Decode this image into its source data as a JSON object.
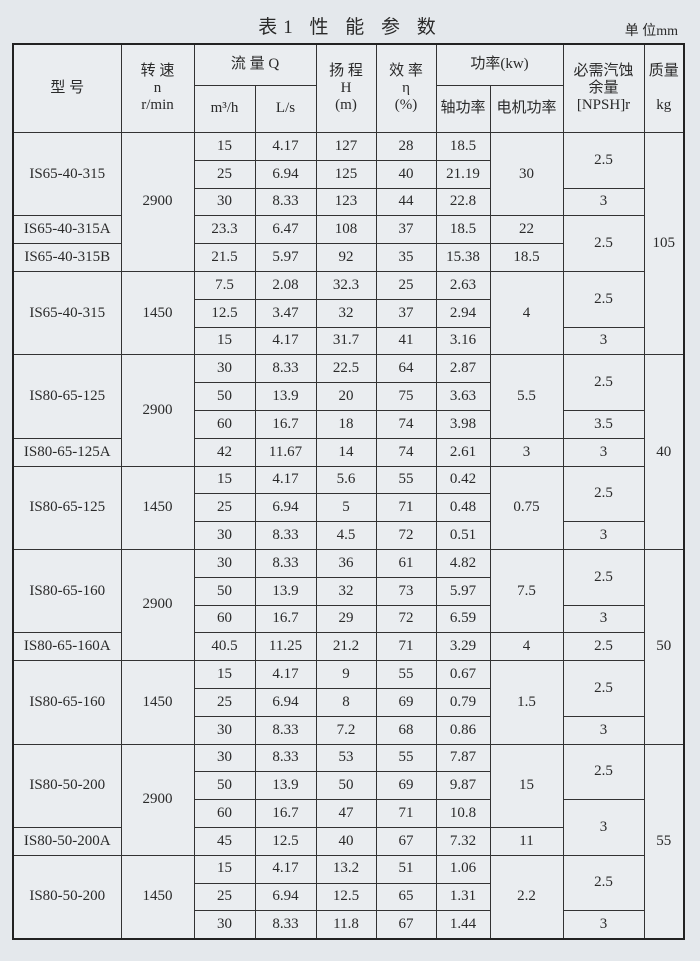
{
  "title": "表1  性 能 参 数",
  "unit": "单 位mm",
  "headers": {
    "model": "型    号",
    "speed": [
      "转 速",
      "n",
      "r/min"
    ],
    "flow": "流 量  Q",
    "flow_m3h": "m³/h",
    "flow_ls": "L/s",
    "head": [
      "扬 程",
      "H",
      "(m)"
    ],
    "efficiency": [
      "效 率",
      "η",
      "(%)"
    ],
    "power": "功率(kw)",
    "shaft_power": "轴功率",
    "motor_power": "电机功率",
    "npsh": [
      "必需汽蚀",
      "余量",
      "[NPSH]r"
    ],
    "mass": [
      "质量",
      "kg"
    ]
  },
  "groups": [
    {
      "model": "IS65-40-315",
      "speed": "2900",
      "speed_rows": 5,
      "rows": [
        [
          "15",
          "4.17",
          "127",
          "28",
          "18.5"
        ],
        [
          "25",
          "6.94",
          "125",
          "40",
          "21.19"
        ],
        [
          "30",
          "8.33",
          "123",
          "44",
          "22.8"
        ]
      ]
    },
    {
      "model": "IS65-40-315A",
      "rows": [
        [
          "23.3",
          "6.47",
          "108",
          "37",
          "18.5"
        ]
      ]
    },
    {
      "model": "IS65-40-315B",
      "rows": [
        [
          "21.5",
          "5.97",
          "92",
          "35",
          "15.38"
        ]
      ]
    },
    {
      "model": "IS65-40-315",
      "speed": "1450",
      "speed_rows": 3,
      "rows": [
        [
          "7.5",
          "2.08",
          "32.3",
          "25",
          "2.63"
        ],
        [
          "12.5",
          "3.47",
          "32",
          "37",
          "2.94"
        ],
        [
          "15",
          "4.17",
          "31.7",
          "41",
          "3.16"
        ]
      ]
    },
    {
      "model": "IS80-65-125",
      "speed": "2900",
      "speed_rows": 4,
      "rows": [
        [
          "30",
          "8.33",
          "22.5",
          "64",
          "2.87"
        ],
        [
          "50",
          "13.9",
          "20",
          "75",
          "3.63"
        ],
        [
          "60",
          "16.7",
          "18",
          "74",
          "3.98"
        ]
      ]
    },
    {
      "model": "IS80-65-125A",
      "rows": [
        [
          "42",
          "11.67",
          "14",
          "74",
          "2.61"
        ]
      ]
    },
    {
      "model": "IS80-65-125",
      "speed": "1450",
      "speed_rows": 3,
      "rows": [
        [
          "15",
          "4.17",
          "5.6",
          "55",
          "0.42"
        ],
        [
          "25",
          "6.94",
          "5",
          "71",
          "0.48"
        ],
        [
          "30",
          "8.33",
          "4.5",
          "72",
          "0.51"
        ]
      ]
    },
    {
      "model": "IS80-65-160",
      "speed": "2900",
      "speed_rows": 4,
      "rows": [
        [
          "30",
          "8.33",
          "36",
          "61",
          "4.82"
        ],
        [
          "50",
          "13.9",
          "32",
          "73",
          "5.97"
        ],
        [
          "60",
          "16.7",
          "29",
          "72",
          "6.59"
        ]
      ]
    },
    {
      "model": "IS80-65-160A",
      "rows": [
        [
          "40.5",
          "11.25",
          "21.2",
          "71",
          "3.29"
        ]
      ]
    },
    {
      "model": "IS80-65-160",
      "speed": "1450",
      "speed_rows": 3,
      "rows": [
        [
          "15",
          "4.17",
          "9",
          "55",
          "0.67"
        ],
        [
          "25",
          "6.94",
          "8",
          "69",
          "0.79"
        ],
        [
          "30",
          "8.33",
          "7.2",
          "68",
          "0.86"
        ]
      ]
    },
    {
      "model": "IS80-50-200",
      "speed": "2900",
      "speed_rows": 4,
      "rows": [
        [
          "30",
          "8.33",
          "53",
          "55",
          "7.87"
        ],
        [
          "50",
          "13.9",
          "50",
          "69",
          "9.87"
        ],
        [
          "60",
          "16.7",
          "47",
          "71",
          "10.8"
        ]
      ]
    },
    {
      "model": "IS80-50-200A",
      "rows": [
        [
          "45",
          "12.5",
          "40",
          "67",
          "7.32"
        ]
      ]
    },
    {
      "model": "IS80-50-200",
      "speed": "1450",
      "speed_rows": 3,
      "rows": [
        [
          "15",
          "4.17",
          "13.2",
          "51",
          "1.06"
        ],
        [
          "25",
          "6.94",
          "12.5",
          "65",
          "1.31"
        ],
        [
          "30",
          "8.33",
          "11.8",
          "67",
          "1.44"
        ]
      ]
    }
  ],
  "motor_power": [
    {
      "value": "30",
      "rows": 3
    },
    {
      "value": "22",
      "rows": 1
    },
    {
      "value": "18.5",
      "rows": 1
    },
    {
      "value": "4",
      "rows": 3
    },
    {
      "value": "5.5",
      "rows": 3
    },
    {
      "value": "3",
      "rows": 1
    },
    {
      "value": "0.75",
      "rows": 3
    },
    {
      "value": "7.5",
      "rows": 3
    },
    {
      "value": "4",
      "rows": 1
    },
    {
      "value": "1.5",
      "rows": 3
    },
    {
      "value": "15",
      "rows": 3
    },
    {
      "value": "11",
      "rows": 1
    },
    {
      "value": "2.2",
      "rows": 3
    }
  ],
  "npsh": [
    {
      "value": "2.5",
      "rows": 2
    },
    {
      "value": "3",
      "rows": 1
    },
    {
      "value": "2.5",
      "rows": 2
    },
    {
      "value": "2.5",
      "rows": 2
    },
    {
      "value": "3",
      "rows": 1
    },
    {
      "value": "2.5",
      "rows": 2
    },
    {
      "value": "3.5",
      "rows": 1
    },
    {
      "value": "3",
      "rows": 1
    },
    {
      "value": "2.5",
      "rows": 2
    },
    {
      "value": "3",
      "rows": 1
    },
    {
      "value": "2.5",
      "rows": 2
    },
    {
      "value": "3",
      "rows": 1
    },
    {
      "value": "2.5",
      "rows": 1
    },
    {
      "value": "2.5",
      "rows": 2
    },
    {
      "value": "3",
      "rows": 1
    },
    {
      "value": "2.5",
      "rows": 2
    },
    {
      "value": "3",
      "rows": 2
    },
    {
      "value": "2.5",
      "rows": 2
    },
    {
      "value": "3",
      "rows": 1
    }
  ],
  "mass": [
    {
      "value": "105",
      "rows": 8
    },
    {
      "value": "40",
      "rows": 7
    },
    {
      "value": "50",
      "rows": 7
    },
    {
      "value": "55",
      "rows": 7
    }
  ]
}
